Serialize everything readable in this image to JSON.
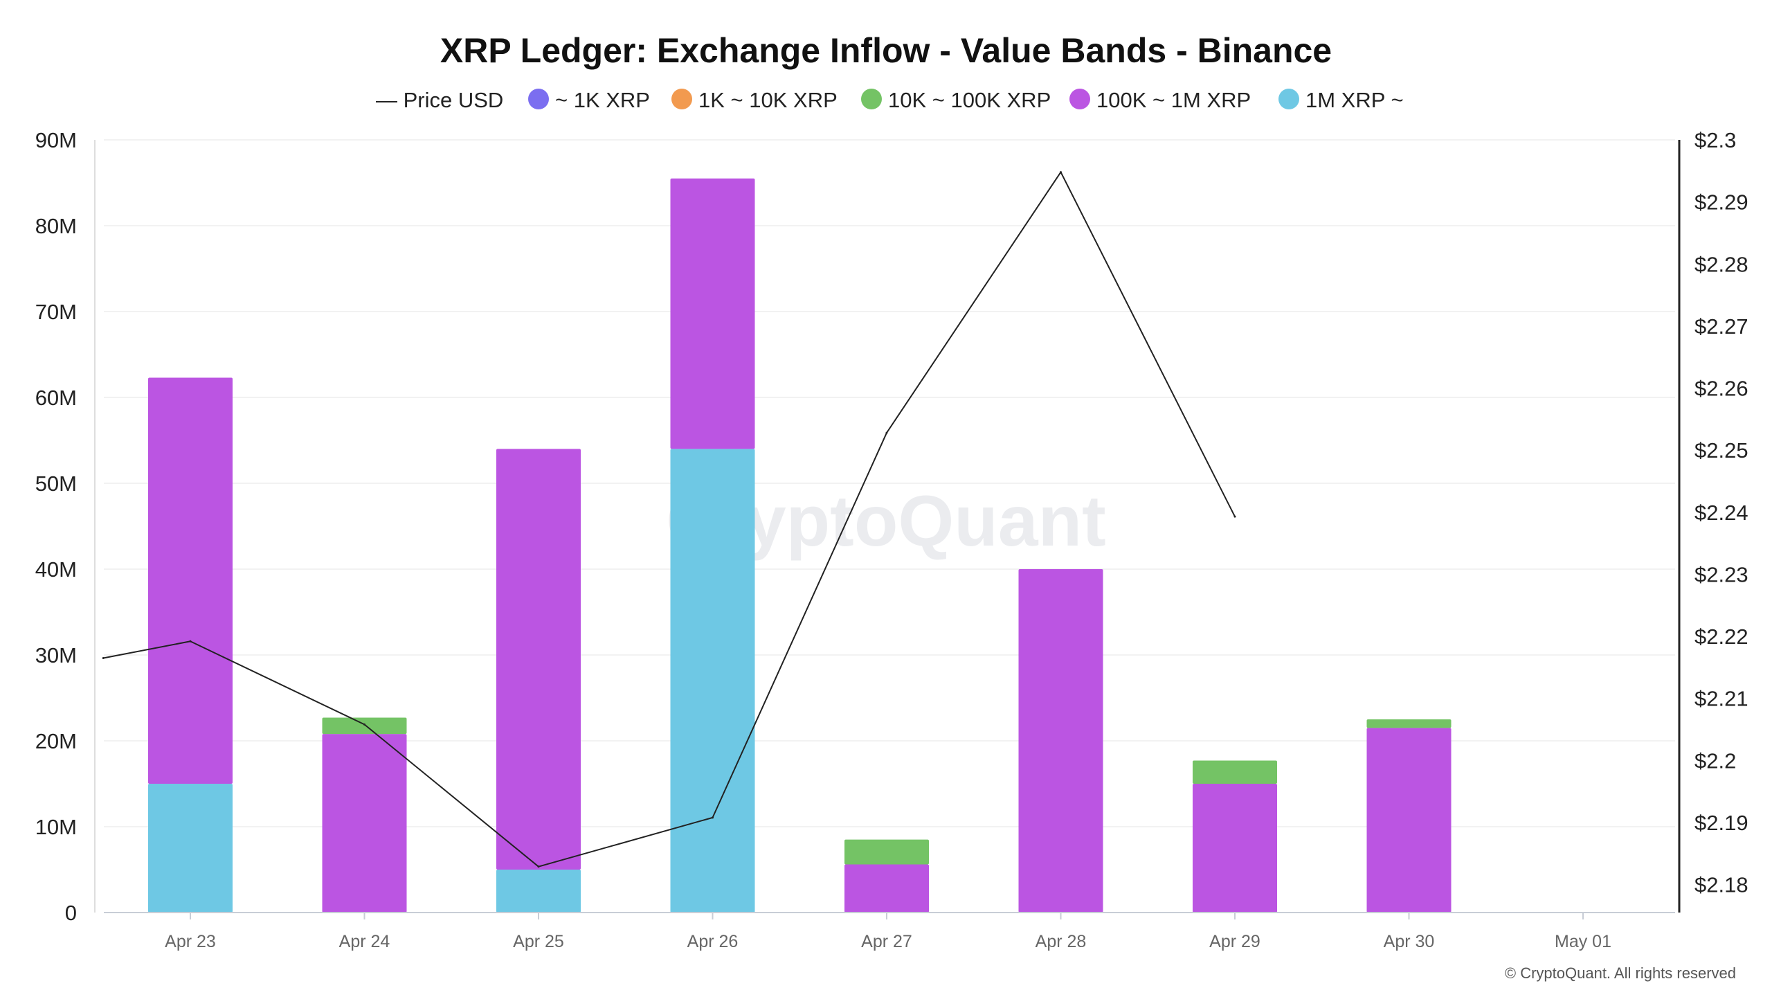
{
  "chart_data": {
    "type": "bar",
    "title": "XRP Ledger: Exchange Inflow - Value Bands - Binance",
    "categories": [
      "Apr 23",
      "Apr 24",
      "Apr 25",
      "Apr 26",
      "Apr 27",
      "Apr 28",
      "Apr 29",
      "Apr 30",
      "May 01"
    ],
    "stacked": true,
    "y_left": {
      "ticks": [
        "0",
        "10M",
        "20M",
        "30M",
        "40M",
        "50M",
        "60M",
        "70M",
        "80M",
        "90M"
      ],
      "ylim": [
        0,
        90000000
      ]
    },
    "y_right": {
      "ticks": [
        "$2.18",
        "$2.19",
        "$2.2",
        "$2.21",
        "$2.22",
        "$2.23",
        "$2.24",
        "$2.25",
        "$2.26",
        "$2.27",
        "$2.28",
        "$2.29",
        "$2.3"
      ],
      "ylim": [
        2.1755,
        2.3
      ]
    },
    "series": [
      {
        "name": "~ 1K XRP",
        "color": "#7b6ef0",
        "values": [
          0,
          0,
          0,
          0,
          0,
          0,
          0,
          0,
          null
        ]
      },
      {
        "name": "1K ~ 10K XRP",
        "color": "#f29a4f",
        "values": [
          0,
          0,
          0,
          0,
          0,
          0,
          0,
          0,
          null
        ]
      },
      {
        "name": "1M XRP ~",
        "color": "#6ec8e4",
        "values": [
          15000000,
          0,
          5000000,
          54000000,
          0,
          0,
          0,
          0,
          null
        ]
      },
      {
        "name": "100K ~ 1M XRP",
        "color": "#bb55e2",
        "values": [
          47300000,
          20800000,
          49000000,
          31500000,
          5600000,
          40000000,
          15000000,
          21500000,
          null
        ]
      },
      {
        "name": "10K ~ 100K XRP",
        "color": "#74c365",
        "values": [
          0,
          1900000,
          0,
          0,
          2900000,
          0,
          2700000,
          1000000,
          null
        ]
      }
    ],
    "legend_order": [
      "~ 1K XRP",
      "1K ~ 10K XRP",
      "10K ~ 100K XRP",
      "100K ~ 1M XRP",
      "1M XRP ~"
    ],
    "line": {
      "name": "Price USD",
      "color": "#222222",
      "x_offsets": [
        -0.5,
        0,
        1,
        2,
        3,
        4,
        5,
        6
      ],
      "values": [
        2.2165,
        2.2192,
        2.2058,
        2.1829,
        2.1908,
        2.2528,
        2.2948,
        2.2393
      ]
    },
    "grid": true,
    "legend_position": "top-center"
  },
  "legend": {
    "price_label": "— Price USD"
  },
  "watermark": "CryptoQuant",
  "copyright": "© CryptoQuant. All rights reserved"
}
